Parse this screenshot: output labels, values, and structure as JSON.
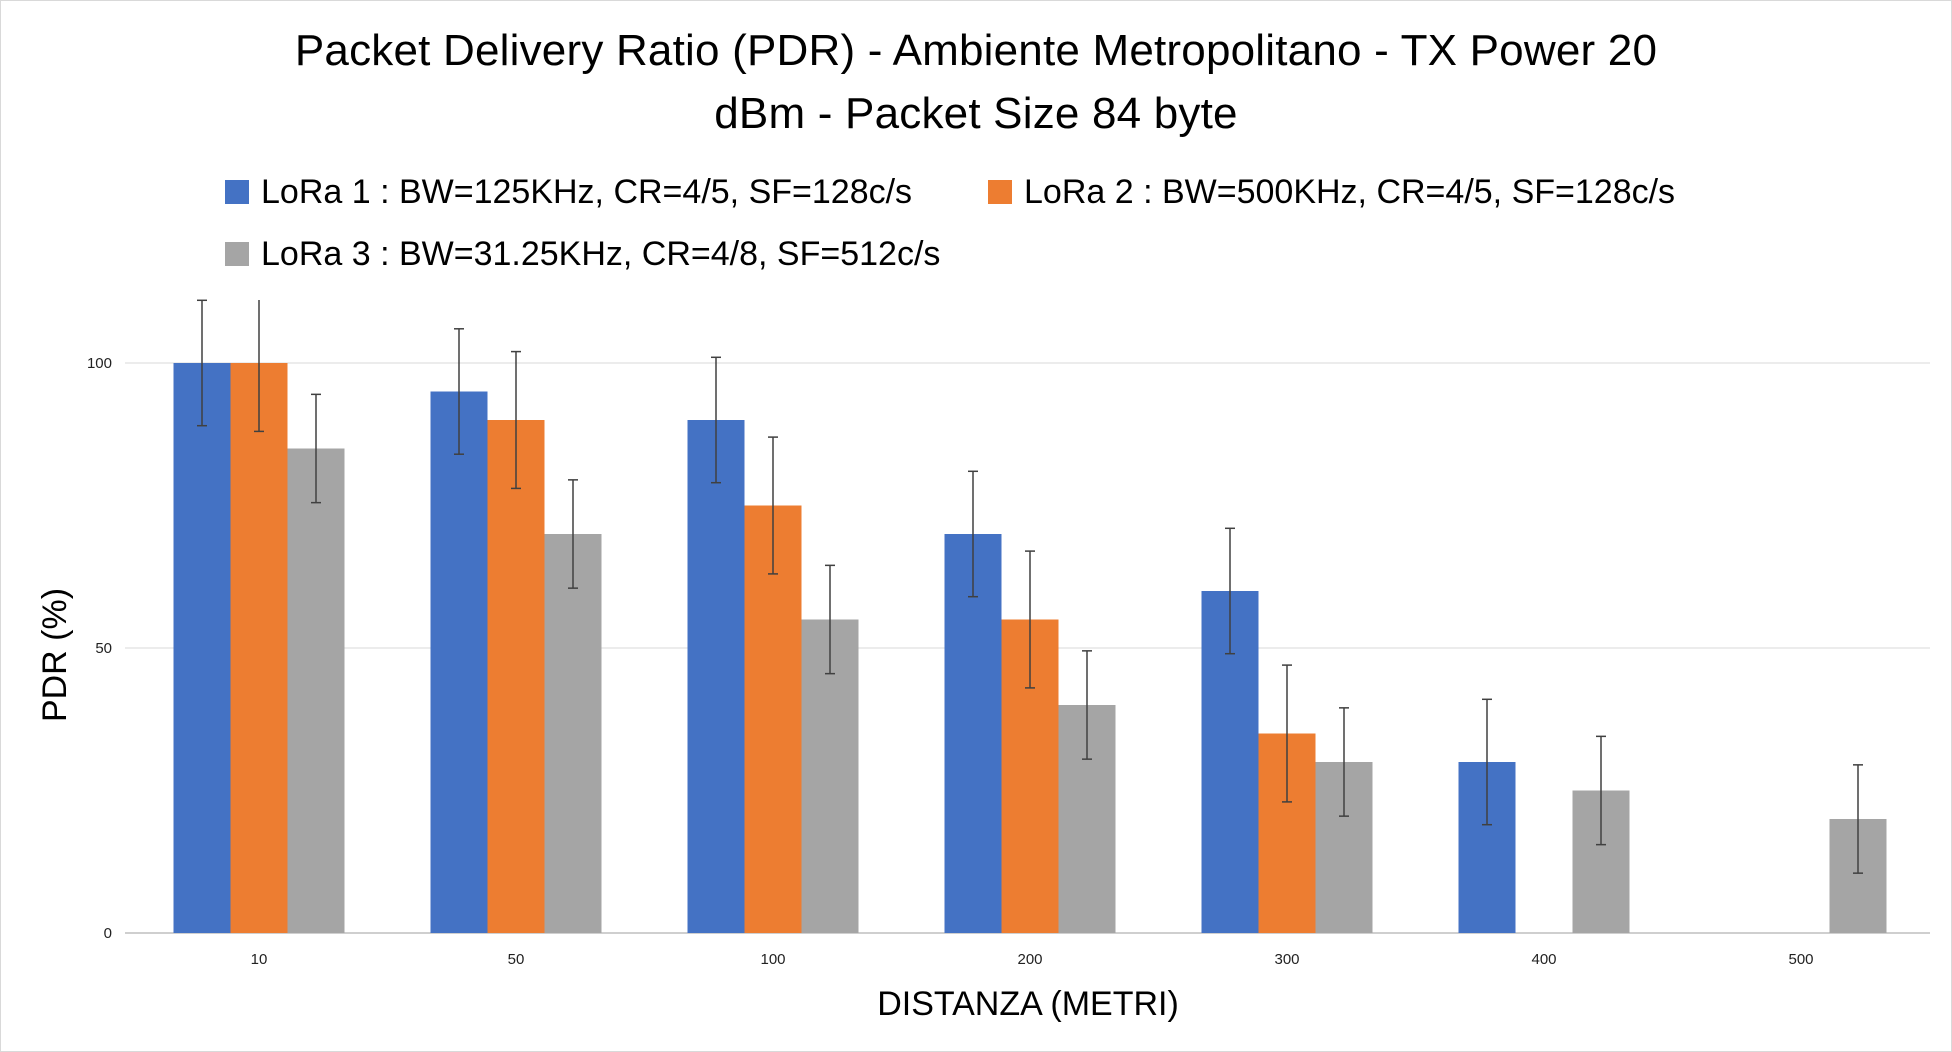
{
  "chart_data": {
    "type": "bar",
    "title": "Packet Delivery Ratio (PDR) - Ambiente Metropolitano - TX Power 20 dBm - Packet Size 84 byte",
    "title_lines": [
      "Packet Delivery Ratio (PDR) - Ambiente Metropolitano - TX Power 20",
      "dBm - Packet Size 84 byte"
    ],
    "xlabel": "DISTANZA (METRI)",
    "ylabel": "PDR (%)",
    "categories": [
      "10",
      "50",
      "100",
      "200",
      "300",
      "400",
      "500"
    ],
    "ylim": [
      0,
      100
    ],
    "yticks": [
      0,
      50,
      100
    ],
    "grid": true,
    "legend_position": "top-left",
    "series": [
      {
        "name": "LoRa 1 : BW=125KHz, CR=4/5, SF=128c/s",
        "color": "#4472C4",
        "values": [
          100,
          95,
          90,
          70,
          60,
          30,
          null
        ],
        "errors": [
          11,
          11,
          11,
          11,
          11,
          11,
          null
        ]
      },
      {
        "name": "LoRa 2 : BW=500KHz, CR=4/5, SF=128c/s",
        "color": "#ED7D31",
        "values": [
          100,
          90,
          75,
          55,
          35,
          null,
          null
        ],
        "errors": [
          12,
          12,
          12,
          12,
          12,
          null,
          null
        ]
      },
      {
        "name": "LoRa 3 : BW=31.25KHz, CR=4/8, SF=512c/s",
        "color": "#A5A5A5",
        "values": [
          85,
          70,
          55,
          40,
          30,
          25,
          20
        ],
        "errors": [
          9.5,
          9.5,
          9.5,
          9.5,
          9.5,
          9.5,
          9.5
        ]
      }
    ],
    "colors": {
      "gridline": "#d9d9d9",
      "axis": "#bfbfbf",
      "error_bar": "#404040"
    }
  }
}
